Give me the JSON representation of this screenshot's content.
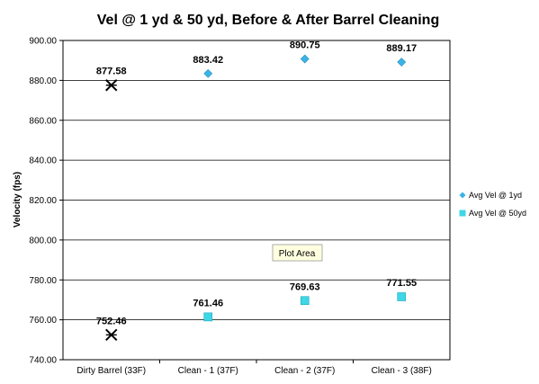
{
  "chart_data": {
    "type": "scatter",
    "title": "Vel @ 1 yd & 50 yd, Before & After Barrel Cleaning",
    "ylabel": "Velocity (fps)",
    "xlabel": "",
    "categories": [
      "Dirty Barrel (33F)",
      "Clean - 1 (37F)",
      "Clean - 2 (37F)",
      "Clean - 3 (38F)"
    ],
    "ylim": [
      740,
      900
    ],
    "yticks": [
      "740.00",
      "760.00",
      "780.00",
      "800.00",
      "820.00",
      "840.00",
      "860.00",
      "880.00",
      "900.00"
    ],
    "grid": true,
    "legend_position": "right",
    "series": [
      {
        "name": "Avg Vel @ 1yd",
        "marker": "diamond",
        "color": "#3ab4e6",
        "values": [
          877.58,
          883.42,
          890.75,
          889.17
        ],
        "labels": [
          "877.58",
          "883.42",
          "890.75",
          "889.17"
        ]
      },
      {
        "name": "Avg Vel @ 50yd",
        "marker": "square",
        "color": "#3fd6e6",
        "values": [
          752.46,
          761.46,
          769.63,
          771.55
        ],
        "labels": [
          "752.46",
          "761.46",
          "769.63",
          "771.55"
        ]
      }
    ],
    "first_point_marker": "asterisk",
    "first_point_color": "#000000"
  },
  "tooltip": {
    "text": "Plot Area"
  }
}
